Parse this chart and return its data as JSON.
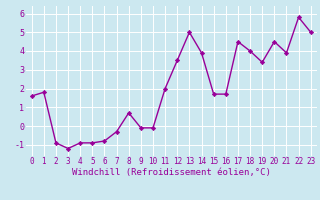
{
  "x": [
    0,
    1,
    2,
    3,
    4,
    5,
    6,
    7,
    8,
    9,
    10,
    11,
    12,
    13,
    14,
    15,
    16,
    17,
    18,
    19,
    20,
    21,
    22,
    23
  ],
  "y": [
    1.6,
    1.8,
    -0.9,
    -1.2,
    -0.9,
    -0.9,
    -0.8,
    -0.3,
    0.7,
    -0.1,
    -0.1,
    2.0,
    3.5,
    5.0,
    3.9,
    1.7,
    1.7,
    4.5,
    4.0,
    3.4,
    4.5,
    3.9,
    5.8,
    5.0
  ],
  "line_color": "#990099",
  "marker": "D",
  "marker_size": 2.2,
  "line_width": 1.0,
  "bg_color": "#cce8f0",
  "grid_color": "#ffffff",
  "xlabel": "Windchill (Refroidissement éolien,°C)",
  "xlabel_color": "#990099",
  "xlabel_fontsize": 6.5,
  "tick_color": "#990099",
  "tick_fontsize": 5.5,
  "ytick_fontsize": 6.0,
  "ylim": [
    -1.6,
    6.4
  ],
  "xlim": [
    -0.5,
    23.5
  ],
  "yticks": [
    -1,
    0,
    1,
    2,
    3,
    4,
    5,
    6
  ],
  "xticks": [
    0,
    1,
    2,
    3,
    4,
    5,
    6,
    7,
    8,
    9,
    10,
    11,
    12,
    13,
    14,
    15,
    16,
    17,
    18,
    19,
    20,
    21,
    22,
    23
  ]
}
